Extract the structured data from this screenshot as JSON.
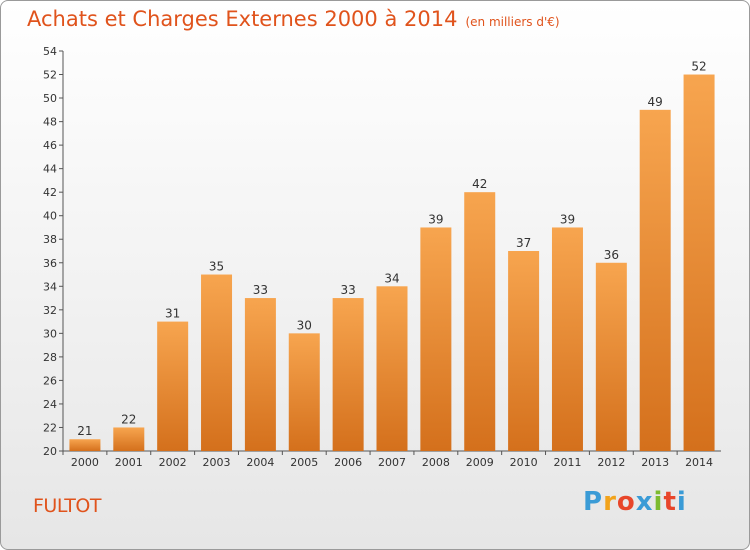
{
  "header": {
    "title": "Achats et Charges Externes 2000 à 2014",
    "unit": "(en milliers d'€)"
  },
  "footer": {
    "town": "FULTOT",
    "logo": [
      "P",
      "r",
      "o",
      "x",
      "i",
      "t",
      "i"
    ]
  },
  "colors": {
    "title": "#e0531c",
    "bar_top": "#f7a54f",
    "bar_bottom": "#d4701c",
    "logo": [
      "#3a9bd6",
      "#f2a31b",
      "#e8462a",
      "#3a9bd6",
      "#7dbb2f",
      "#e8462a",
      "#3a9bd6"
    ]
  },
  "chart_data": {
    "type": "bar",
    "title": "Achats et Charges Externes 2000 à 2014",
    "subtitle": "(en milliers d'€)",
    "categories": [
      "2000",
      "2001",
      "2002",
      "2003",
      "2004",
      "2005",
      "2006",
      "2007",
      "2008",
      "2009",
      "2010",
      "2011",
      "2012",
      "2013",
      "2014"
    ],
    "values": [
      21,
      22,
      31,
      35,
      33,
      30,
      33,
      34,
      39,
      42,
      37,
      39,
      36,
      49,
      52
    ],
    "data_labels": [
      "21",
      "22",
      "31",
      "35",
      "33",
      "30",
      "33",
      "34",
      "39",
      "42",
      "37",
      "39",
      "36",
      "49",
      "52"
    ],
    "ylim": [
      20,
      54
    ],
    "yticks": [
      20,
      22,
      24,
      26,
      28,
      30,
      32,
      34,
      36,
      38,
      40,
      42,
      44,
      46,
      48,
      50,
      52,
      54
    ],
    "grid": false
  }
}
